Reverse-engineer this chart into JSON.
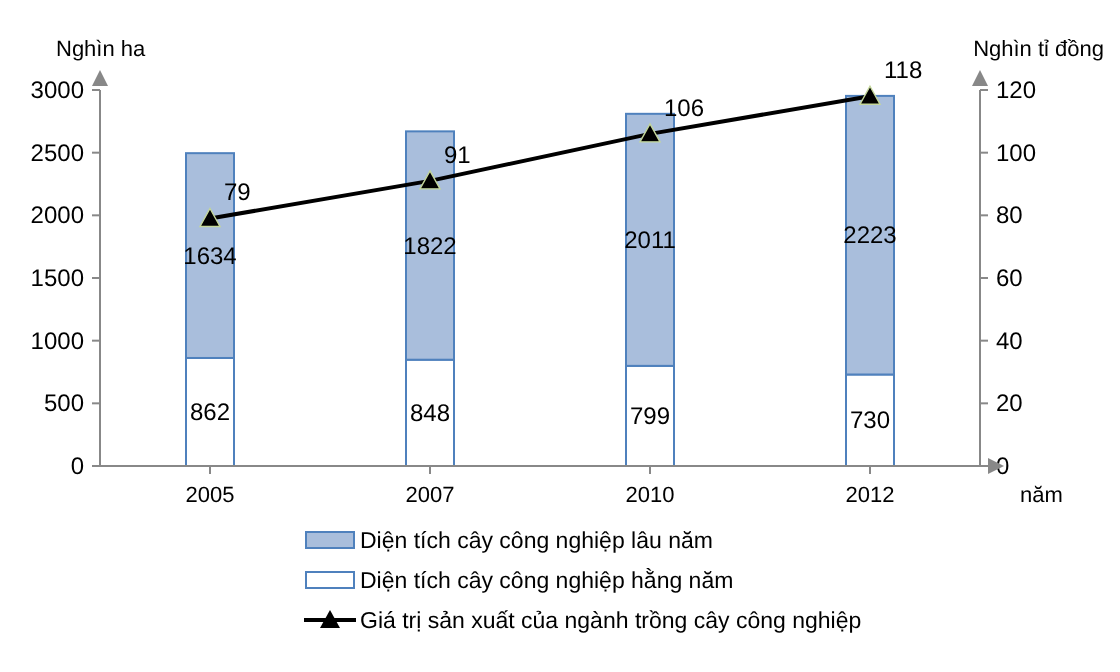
{
  "chart_data": {
    "type": "bar",
    "stacked": true,
    "categories": [
      "2005",
      "2007",
      "2010",
      "2012"
    ],
    "series": [
      {
        "name": "Diện tích cây công nghiệp hằng năm",
        "color": "#ffffff",
        "values": [
          862,
          848,
          799,
          730
        ]
      },
      {
        "name": "Diện tích cây công nghiệp lâu năm",
        "color": "#a9bedc",
        "values": [
          1634,
          1822,
          2011,
          2223
        ]
      },
      {
        "name": "Giá trị sản xuất của ngành trồng cây công nghiệp",
        "type": "line",
        "axis": "y2",
        "color": "#000000",
        "marker": "triangle",
        "values": [
          79,
          91,
          106,
          118
        ]
      }
    ],
    "ylabel": "Nghìn ha",
    "y2label": "Nghìn tỉ đồng",
    "xlabel": "năm",
    "ylim": [
      0,
      3000
    ],
    "yticks": [
      0,
      500,
      1000,
      1500,
      2000,
      2500,
      3000
    ],
    "y2lim": [
      0,
      120
    ],
    "y2ticks": [
      0,
      20,
      40,
      60,
      80,
      100,
      120
    ],
    "data_labels": true,
    "legend": "bottom",
    "grid": false
  }
}
